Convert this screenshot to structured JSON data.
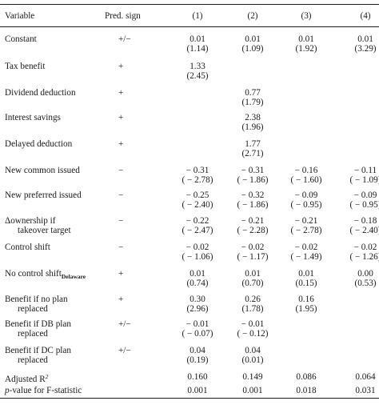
{
  "header": {
    "variable": "Variable",
    "pred_sign": "Pred. sign",
    "columns": [
      "(1)",
      "(2)",
      "(3)",
      "(4)"
    ]
  },
  "rows": [
    {
      "label": "Constant",
      "sign": "+/−",
      "coef": [
        "0.01",
        "0.01",
        "0.01",
        "0.01"
      ],
      "t": [
        "(1.14)",
        "(1.09)",
        "(1.92)",
        "(3.29)"
      ]
    },
    {
      "label": "Tax benefit",
      "sign": "+",
      "coef": [
        "1.33",
        "",
        "",
        ""
      ],
      "t": [
        "(2.45)",
        "",
        "",
        ""
      ]
    },
    {
      "label": "Dividend deduction",
      "sign": "+",
      "coef": [
        "",
        "0.77",
        "",
        ""
      ],
      "t": [
        "",
        "(1.79)",
        "",
        ""
      ]
    },
    {
      "label": "Interest savings",
      "sign": "+",
      "coef": [
        "",
        "2.38",
        "",
        ""
      ],
      "t": [
        "",
        "(1.96)",
        "",
        ""
      ]
    },
    {
      "label": "Delayed deduction",
      "sign": "+",
      "coef": [
        "",
        "1.77",
        "",
        ""
      ],
      "t": [
        "",
        "(2.71)",
        "",
        ""
      ]
    },
    {
      "label": "New common issued",
      "sign": "−",
      "coef": [
        "− 0.31",
        "− 0.31",
        "− 0.16",
        "− 0.11"
      ],
      "t": [
        "( − 2.78)",
        "( − 1.86)",
        "( − 1.60)",
        "( − 1.09)"
      ]
    },
    {
      "label": "New preferred issued",
      "sign": "−",
      "coef": [
        "− 0.25",
        "− 0.32",
        "− 0.09",
        "− 0.09"
      ],
      "t": [
        "( − 2.40)",
        "( − 1.86)",
        "( − 0.95)",
        "( − 0.95)"
      ]
    },
    {
      "label": "Δownership if",
      "label2": "takeover target",
      "sign": "−",
      "coef": [
        "− 0.22",
        "− 0.21",
        "− 0.21",
        "− 0.18"
      ],
      "t": [
        "( − 2.47)",
        "( − 2.28)",
        "( − 2.78)",
        "( − 2.40)"
      ]
    },
    {
      "label": "Control shift",
      "sign": "−",
      "coef": [
        "− 0.02",
        "− 0.02",
        "− 0.02",
        "− 0.02"
      ],
      "t": [
        "( − 1.06)",
        "( − 1.17)",
        "( − 1.49)",
        "( − 1.26)"
      ]
    },
    {
      "label": "No control shift",
      "label_sub": "Delaware",
      "sign": "+",
      "coef": [
        "0.01",
        "0.01",
        "0.01",
        "0.00"
      ],
      "t": [
        "(0.74)",
        "(0.70)",
        "(0.15)",
        "(0.53)"
      ]
    },
    {
      "label": "Benefit if no plan",
      "label2": "replaced",
      "sign": "+",
      "coef": [
        "0.30",
        "0.26",
        "0.16",
        ""
      ],
      "t": [
        "(2.96)",
        "(1.78)",
        "(1.95)",
        ""
      ]
    },
    {
      "label": "Benefit if DB plan",
      "label2": "replaced",
      "sign": "+/−",
      "coef": [
        "− 0.01",
        "− 0.01",
        "",
        ""
      ],
      "t": [
        "( − 0.07)",
        "( − 0.12)",
        "",
        ""
      ]
    },
    {
      "label": "Benefit if DC plan",
      "label2": "replaced",
      "sign": "+/−",
      "coef": [
        "0.04",
        "0.04",
        "",
        ""
      ],
      "t": [
        "(0.19)",
        "(0.01)",
        "",
        ""
      ]
    }
  ],
  "footer": [
    {
      "label": "Adjusted R",
      "label_sup": "2",
      "values": [
        "0.160",
        "0.149",
        "0.086",
        "0.064"
      ]
    },
    {
      "label_italic": "p",
      "label": "-value for F-statistic",
      "values": [
        "0.001",
        "0.001",
        "0.018",
        "0.031"
      ]
    }
  ]
}
